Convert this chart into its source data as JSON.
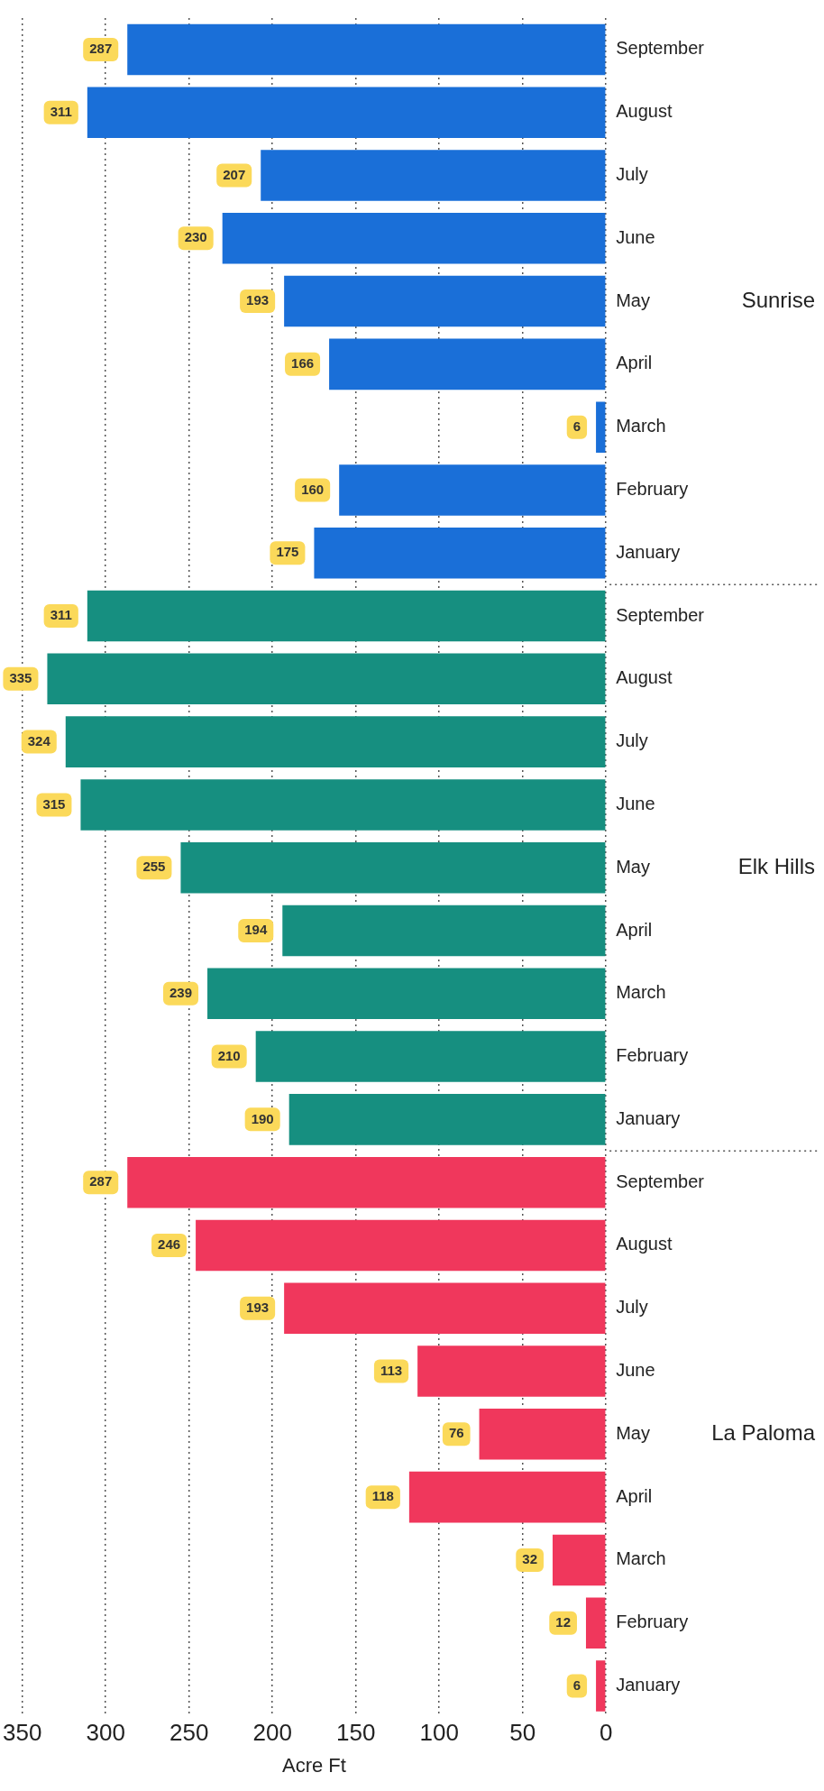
{
  "chart_data": {
    "type": "bar",
    "orientation": "horizontal",
    "xlabel": "Acre Ft",
    "categories": [
      "September",
      "August",
      "July",
      "June",
      "May",
      "April",
      "March",
      "February",
      "January",
      "September",
      "August",
      "July",
      "June",
      "May",
      "April",
      "March",
      "February",
      "January",
      "September",
      "August",
      "July",
      "June",
      "May",
      "April",
      "March",
      "February",
      "January"
    ],
    "series": [
      {
        "name": "Sunrise",
        "color": "#1a6fd8",
        "values": [
          287,
          311,
          207,
          230,
          193,
          166,
          6,
          160,
          175,
          null,
          null,
          null,
          null,
          null,
          null,
          null,
          null,
          null,
          null,
          null,
          null,
          null,
          null,
          null,
          null,
          null,
          null
        ]
      },
      {
        "name": "Elk Hills",
        "color": "#168f80",
        "values": [
          null,
          null,
          null,
          null,
          null,
          null,
          null,
          null,
          null,
          311,
          335,
          324,
          315,
          255,
          194,
          239,
          210,
          190,
          null,
          null,
          null,
          null,
          null,
          null,
          null,
          null,
          null
        ]
      },
      {
        "name": "La Paloma",
        "color": "#f0375c",
        "values": [
          null,
          null,
          null,
          null,
          null,
          null,
          null,
          null,
          null,
          null,
          null,
          null,
          null,
          null,
          null,
          null,
          null,
          null,
          287,
          246,
          193,
          113,
          76,
          118,
          32,
          12,
          6
        ]
      }
    ],
    "xlim": [
      350,
      0
    ],
    "xticks": [
      350,
      300,
      250,
      200,
      150,
      100,
      50,
      0
    ],
    "grid": "x",
    "line_style": "dotted",
    "data_labels": true,
    "legend": false
  }
}
